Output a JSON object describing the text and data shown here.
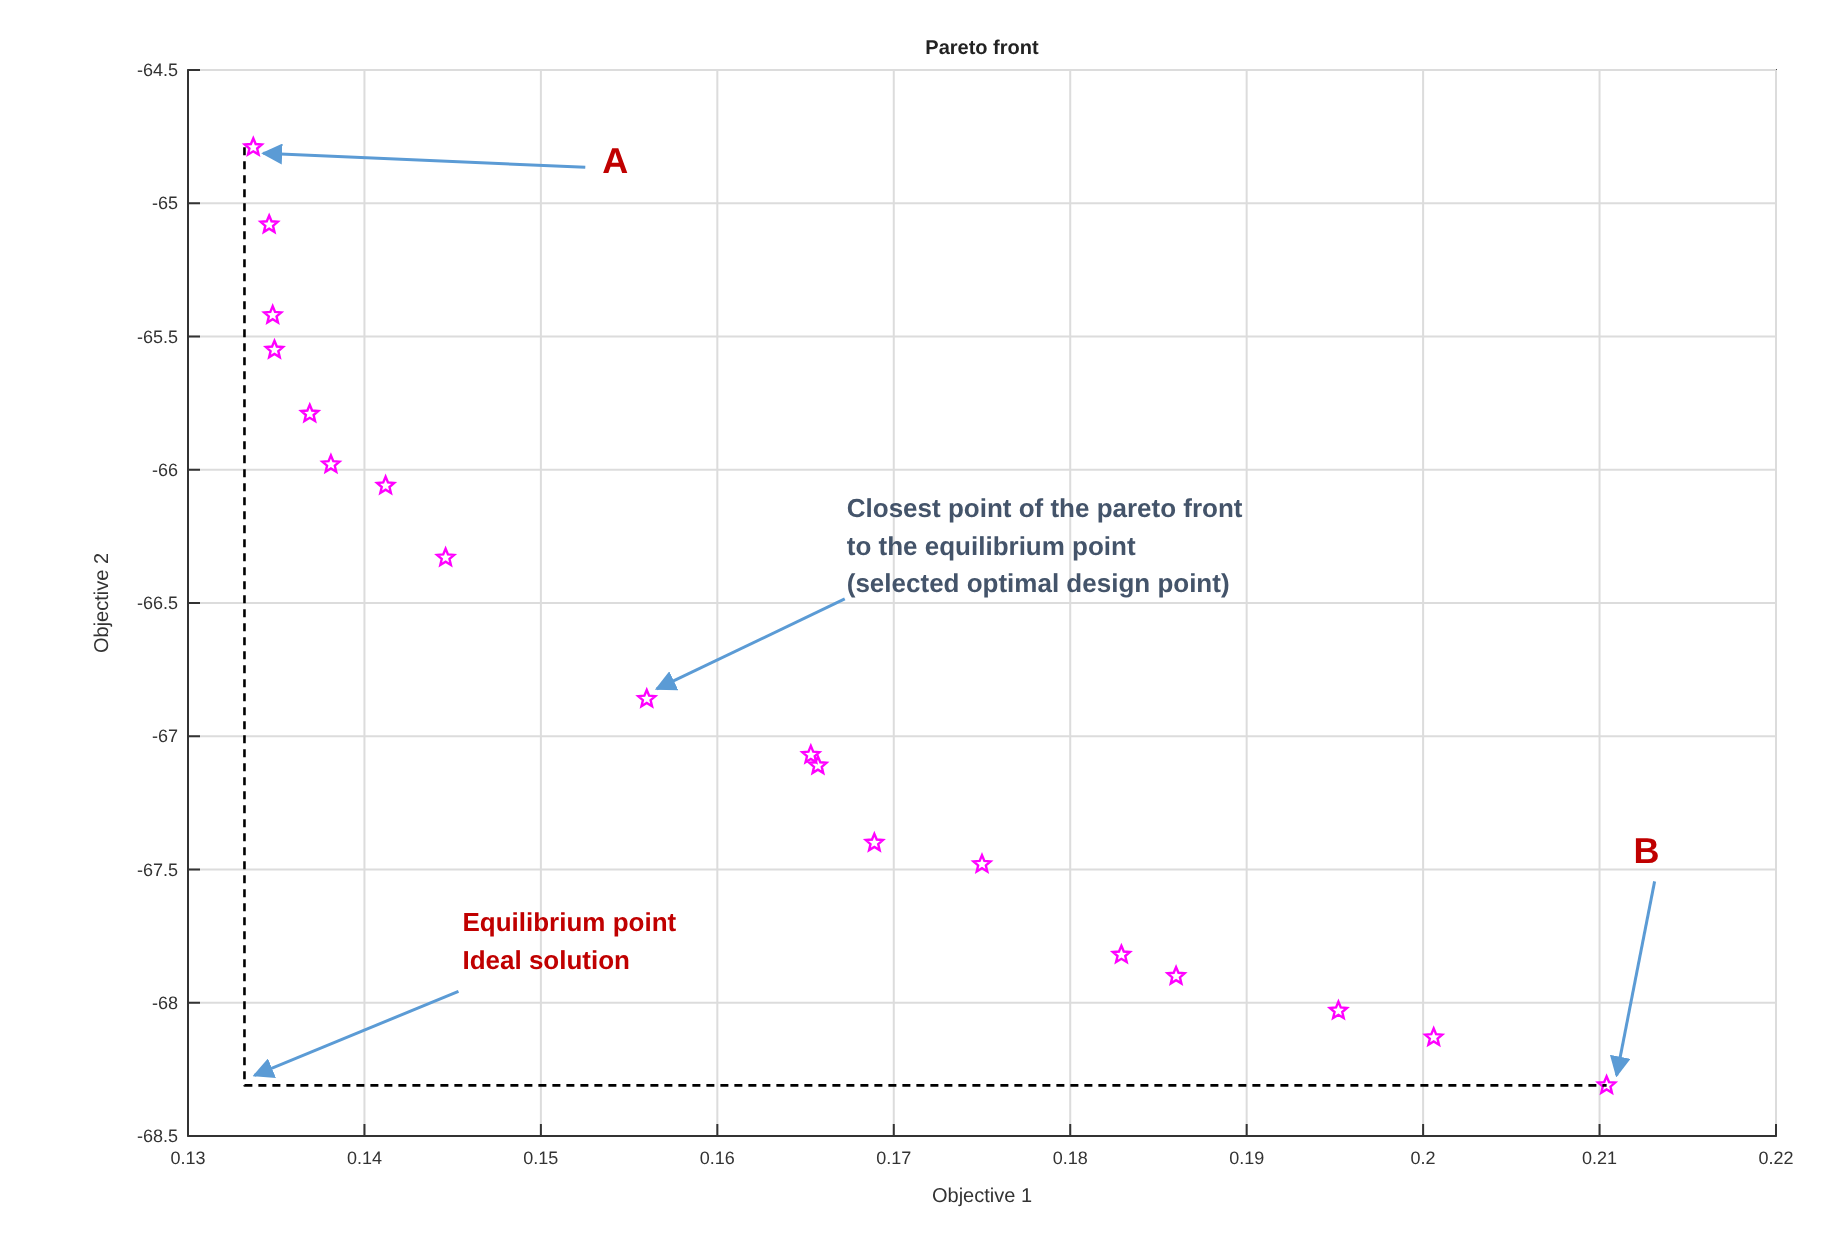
{
  "chart_data": {
    "type": "scatter",
    "title": "Pareto front",
    "xlabel": "Objective 1",
    "ylabel": "Objective 2",
    "xlim": [
      0.13,
      0.22
    ],
    "xticks": [
      0.13,
      0.14,
      0.15,
      0.16,
      0.17,
      0.18,
      0.19,
      0.2,
      0.21,
      0.22
    ],
    "ylim": [
      -68.5,
      -64.5
    ],
    "yticks": [
      -68.5,
      -68,
      -67.5,
      -67,
      -66.5,
      -66,
      -65.5,
      -65,
      -64.5
    ],
    "grid": true,
    "series": [
      {
        "type": "scatter",
        "color": "#ff00ff",
        "marker": "star",
        "x": [
          0.1337,
          0.1346,
          0.1348,
          0.1349,
          0.1369,
          0.1381,
          0.1412,
          0.1446,
          0.156,
          0.1653,
          0.1657,
          0.1689,
          0.175,
          0.1829,
          0.186,
          0.1952,
          0.2006,
          0.2104
        ],
        "values": [
          -64.79,
          -65.08,
          -65.42,
          -65.55,
          -65.79,
          -65.98,
          -66.06,
          -66.33,
          -66.86,
          -67.07,
          -67.11,
          -67.4,
          -67.48,
          -67.82,
          -67.9,
          -68.03,
          -68.13,
          -68.31
        ]
      },
      {
        "type": "line",
        "color": "#000000",
        "marker": "none",
        "line_style": "dashed",
        "x": [
          0.1332,
          0.1332,
          0.2104
        ],
        "values": [
          -64.79,
          -68.31,
          -68.31
        ]
      }
    ],
    "annotations": [
      {
        "text": "A",
        "x": 0.1337,
        "y": -64.79
      },
      {
        "text": "Closest point of the pareto front\nto the equilibrium point\n(selected optimal design point)",
        "x": 0.156,
        "y": -66.86
      },
      {
        "text": "Equilibrium point\nIdeal solution",
        "x": 0.1332,
        "y": -68.31
      },
      {
        "text": "B",
        "x": 0.2104,
        "y": -68.31
      }
    ]
  }
}
